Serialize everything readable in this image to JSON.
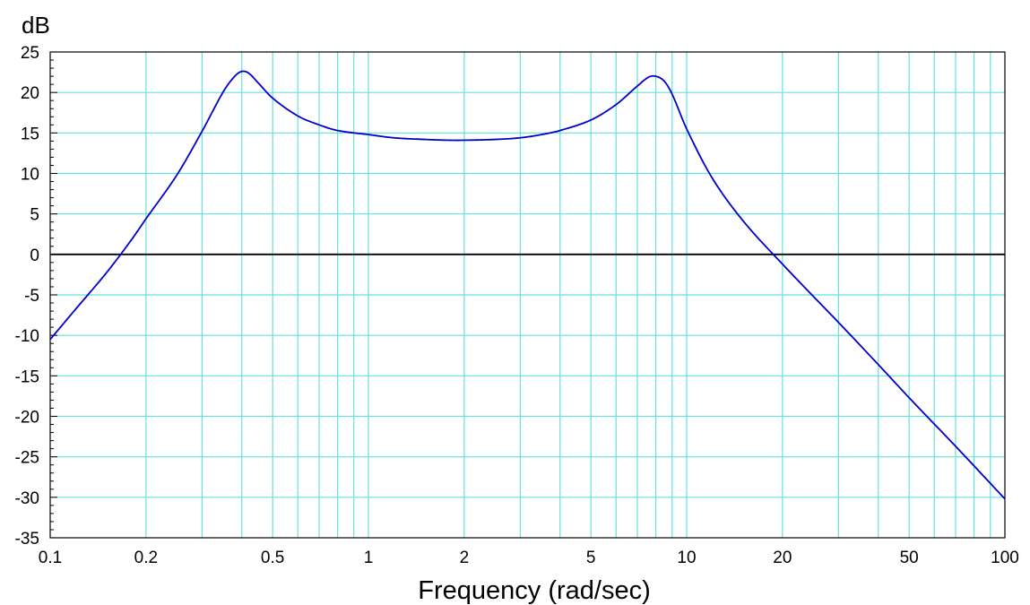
{
  "chart_data": {
    "type": "line",
    "title": "",
    "xlabel": "Frequency (rad/sec)",
    "ylabel": "dB",
    "x_scale": "log",
    "xlim": [
      0.1,
      100
    ],
    "ylim": [
      -35,
      25
    ],
    "x_ticks": [
      {
        "value": 0.1,
        "label": "0.1"
      },
      {
        "value": 0.2,
        "label": "0.2"
      },
      {
        "value": 0.5,
        "label": "0.5"
      },
      {
        "value": 1,
        "label": "1"
      },
      {
        "value": 2,
        "label": "2"
      },
      {
        "value": 5,
        "label": "5"
      },
      {
        "value": 10,
        "label": "10"
      },
      {
        "value": 20,
        "label": "20"
      },
      {
        "value": 50,
        "label": "50"
      },
      {
        "value": 100,
        "label": "100"
      }
    ],
    "y_ticks": [
      {
        "value": 25,
        "label": "25"
      },
      {
        "value": 20,
        "label": "20"
      },
      {
        "value": 15,
        "label": "15"
      },
      {
        "value": 10,
        "label": "10"
      },
      {
        "value": 5,
        "label": "5"
      },
      {
        "value": 0,
        "label": "0"
      },
      {
        "value": -5,
        "label": "-5"
      },
      {
        "value": -10,
        "label": "-10"
      },
      {
        "value": -15,
        "label": "-15"
      },
      {
        "value": -20,
        "label": "-20"
      },
      {
        "value": -25,
        "label": "-25"
      },
      {
        "value": -30,
        "label": "-30"
      },
      {
        "value": -35,
        "label": "-35"
      }
    ],
    "grid": true,
    "grid_color": "#66e0e0",
    "zero_line_color": "#000000",
    "series": [
      {
        "color": "#0000cc",
        "x": [
          0.1,
          0.12,
          0.15,
          0.18,
          0.2,
          0.25,
          0.3,
          0.35,
          0.38,
          0.4,
          0.42,
          0.45,
          0.5,
          0.6,
          0.7,
          0.8,
          1.0,
          1.2,
          1.5,
          1.8,
          2.0,
          2.5,
          3.0,
          3.5,
          4.0,
          5.0,
          6.0,
          7.0,
          7.6,
          8.0,
          8.5,
          9.0,
          10,
          12,
          15,
          20,
          30,
          40,
          50,
          70,
          100
        ],
        "y": [
          -10.5,
          -6.8,
          -2.3,
          1.8,
          4.4,
          9.8,
          15.2,
          20.1,
          22.0,
          22.6,
          22.4,
          21.2,
          19.3,
          17.1,
          16.0,
          15.3,
          14.8,
          14.4,
          14.2,
          14.1,
          14.1,
          14.2,
          14.4,
          14.8,
          15.3,
          16.6,
          18.5,
          20.8,
          21.9,
          22.0,
          21.4,
          19.8,
          15.5,
          9.5,
          4.2,
          -1.2,
          -8.4,
          -13.6,
          -17.7,
          -23.7,
          -30.2
        ]
      }
    ]
  }
}
